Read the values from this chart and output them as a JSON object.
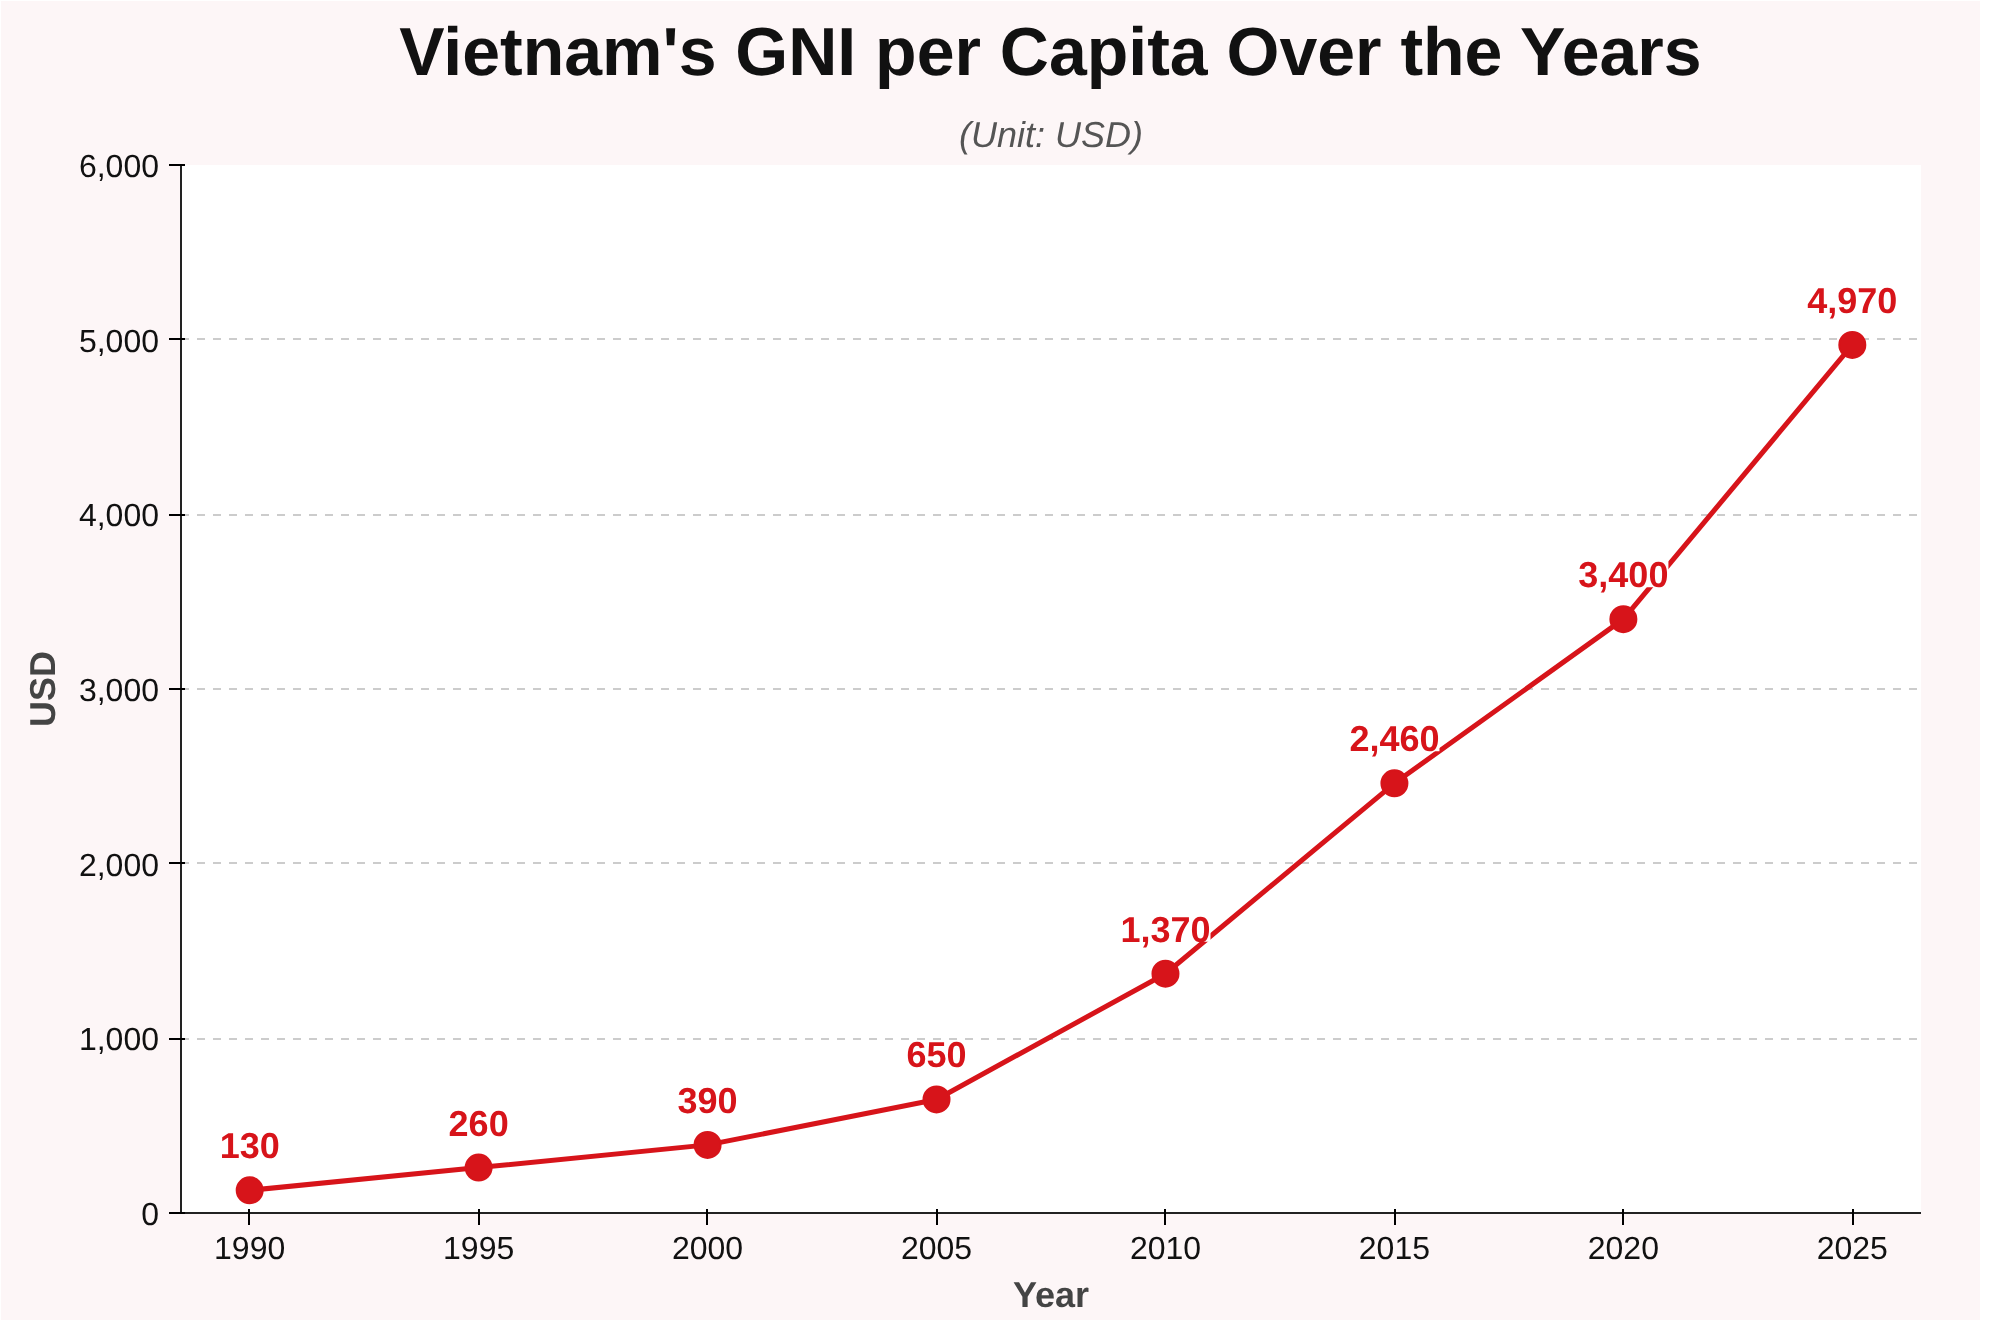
{
  "chart_data": {
    "type": "line",
    "title": "Vietnam's GNI per Capita Over the Years",
    "subtitle": "(Unit: USD)",
    "xlabel": "Year",
    "ylabel": "USD",
    "x": [
      1990,
      1995,
      2000,
      2005,
      2010,
      2015,
      2020,
      2025
    ],
    "series": [
      {
        "color": "#d7141a",
        "values": [
          130,
          260,
          390,
          650,
          1370,
          2460,
          3400,
          4970
        ],
        "value_labels": [
          "130",
          "260",
          "390",
          "650",
          "1,370",
          "2,460",
          "3,400",
          "4,970"
        ]
      }
    ],
    "xlim": [
      1988.5,
      2026.5
    ],
    "xticks": [
      1990,
      1995,
      2000,
      2005,
      2010,
      2015,
      2020,
      2025
    ],
    "ylim": [
      0,
      6000
    ],
    "yticks": [
      0,
      {
        "value": 1000,
        "label": "1,000"
      },
      {
        "value": 2000,
        "label": "2,000"
      },
      {
        "value": 3000,
        "label": "3,000"
      },
      {
        "value": 4000,
        "label": "4,000"
      },
      {
        "value": 5000,
        "label": "5,000"
      },
      {
        "value": 6000,
        "label": "6,000"
      }
    ],
    "grid": "y",
    "marker": "circle",
    "line_style": "solid"
  }
}
